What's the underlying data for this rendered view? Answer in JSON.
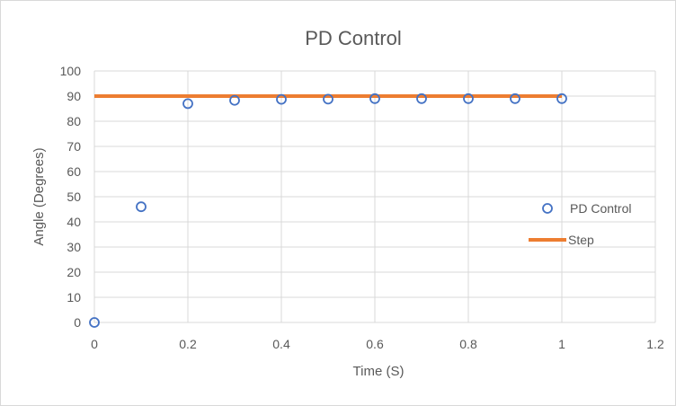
{
  "chart_data": {
    "type": "scatter",
    "title": "PD Control",
    "xlabel": "Time (S)",
    "ylabel": "Angle (Degrees)",
    "xlim": [
      0,
      1.2
    ],
    "ylim": [
      0,
      100
    ],
    "xticks": [
      "0",
      "0.2",
      "0.4",
      "0.6",
      "0.8",
      "1",
      "1.2"
    ],
    "yticks": [
      "0",
      "10",
      "20",
      "30",
      "40",
      "50",
      "60",
      "70",
      "80",
      "90",
      "100"
    ],
    "grid": true,
    "legend_position": "right",
    "series": [
      {
        "name": "PD Control",
        "kind": "scatter",
        "color": "#4472c4",
        "x": [
          0,
          0.1,
          0.2,
          0.3,
          0.4,
          0.5,
          0.6,
          0.7,
          0.8,
          0.9,
          1.0
        ],
        "y": [
          0,
          46,
          87,
          88.3,
          88.7,
          88.8,
          89,
          89,
          89,
          89,
          89
        ]
      },
      {
        "name": "Step",
        "kind": "line",
        "color": "#ed7d31",
        "x": [
          0,
          1.0
        ],
        "y": [
          90,
          90
        ]
      }
    ]
  }
}
